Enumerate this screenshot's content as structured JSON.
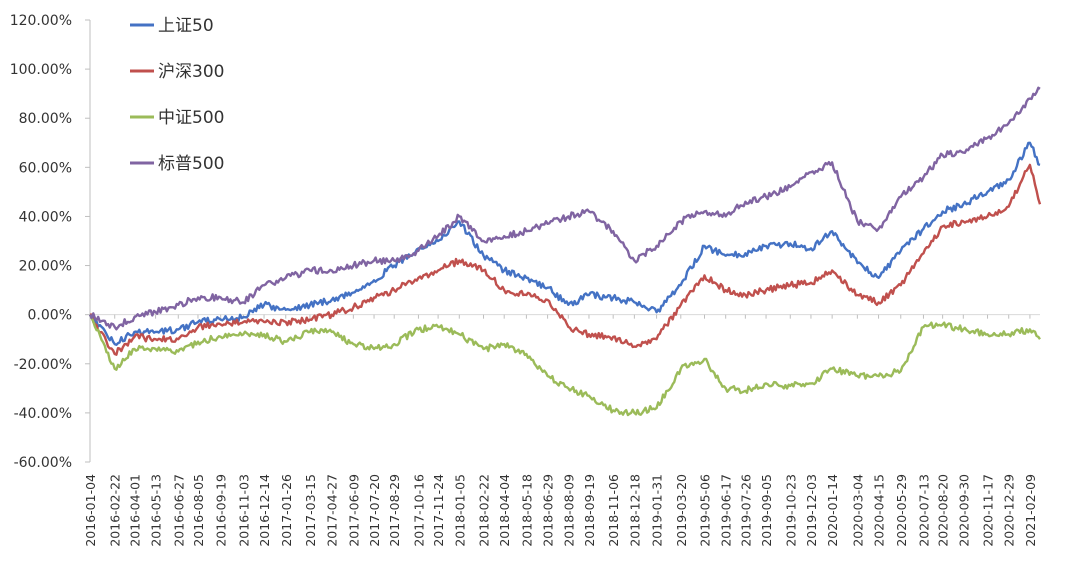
{
  "chart_data": {
    "type": "line",
    "title": "",
    "xlabel": "",
    "ylabel": "",
    "ylim": [
      -60,
      120
    ],
    "y_unit": "%",
    "grid": false,
    "legend_position": "top-left",
    "yticks": [
      "120.00%",
      "100.00%",
      "80.00%",
      "60.00%",
      "40.00%",
      "20.00%",
      "0.00%",
      "-20.00%",
      "-40.00%",
      "-60.00%"
    ],
    "xticks": [
      "2016-01-04",
      "2016-02-22",
      "2016-04-01",
      "2016-05-13",
      "2016-06-27",
      "2016-08-05",
      "2016-09-19",
      "2016-11-03",
      "2016-12-14",
      "2017-01-26",
      "2017-03-15",
      "2017-04-27",
      "2017-06-09",
      "2017-07-20",
      "2017-08-29",
      "2017-10-16",
      "2017-11-24",
      "2018-01-05",
      "2018-02-22",
      "2018-04-04",
      "2018-05-18",
      "2018-06-29",
      "2018-08-09",
      "2018-09-19",
      "2018-11-06",
      "2018-12-18",
      "2019-01-31",
      "2019-03-20",
      "2019-05-06",
      "2019-06-17",
      "2019-07-26",
      "2019-09-05",
      "2019-10-23",
      "2019-12-03",
      "2020-01-14",
      "2020-03-04",
      "2020-04-15",
      "2020-05-29",
      "2020-07-13",
      "2020-08-20",
      "2020-09-30",
      "2020-11-17",
      "2020-12-29",
      "2021-02-09"
    ],
    "x": [
      "2016-01-04",
      "2016-02-22",
      "2016-04-01",
      "2016-05-13",
      "2016-06-27",
      "2016-08-05",
      "2016-09-19",
      "2016-11-03",
      "2016-12-14",
      "2017-01-26",
      "2017-03-15",
      "2017-04-27",
      "2017-06-09",
      "2017-07-20",
      "2017-08-29",
      "2017-10-16",
      "2017-11-24",
      "2018-01-05",
      "2018-02-22",
      "2018-04-04",
      "2018-05-18",
      "2018-06-29",
      "2018-08-09",
      "2018-09-19",
      "2018-11-06",
      "2018-12-18",
      "2019-01-31",
      "2019-03-20",
      "2019-05-06",
      "2019-06-17",
      "2019-07-26",
      "2019-09-05",
      "2019-10-23",
      "2019-12-03",
      "2020-01-14",
      "2020-03-04",
      "2020-04-15",
      "2020-05-29",
      "2020-07-13",
      "2020-08-20",
      "2020-09-30",
      "2020-11-17",
      "2020-12-29",
      "2021-02-09",
      "2021-03-01"
    ],
    "series": [
      {
        "name": "上证50",
        "color": "#4472C4",
        "values": [
          0,
          -12,
          -7,
          -7,
          -6,
          -3,
          -2,
          -1,
          4,
          2,
          4,
          6,
          9,
          14,
          20,
          27,
          30,
          38,
          24,
          18,
          15,
          11,
          4,
          8,
          7,
          5,
          1,
          12,
          28,
          24,
          25,
          28,
          29,
          27,
          34,
          21,
          15,
          26,
          35,
          42,
          45,
          50,
          55,
          70,
          61
        ]
      },
      {
        "name": "沪深300",
        "color": "#C0504D",
        "values": [
          0,
          -16,
          -9,
          -10,
          -10,
          -5,
          -4,
          -3,
          -3,
          -3,
          -2,
          0,
          3,
          7,
          10,
          15,
          18,
          22,
          18,
          10,
          8,
          6,
          -5,
          -8,
          -9,
          -13,
          -10,
          4,
          16,
          10,
          8,
          10,
          12,
          13,
          18,
          8,
          5,
          12,
          25,
          36,
          38,
          40,
          44,
          61,
          45
        ]
      },
      {
        "name": "中证500",
        "color": "#9BBB59",
        "values": [
          0,
          -22,
          -14,
          -14,
          -15,
          -11,
          -9,
          -8,
          -8,
          -11,
          -7,
          -7,
          -12,
          -14,
          -12,
          -6,
          -5,
          -8,
          -14,
          -12,
          -16,
          -25,
          -30,
          -33,
          -39,
          -40,
          -38,
          -22,
          -18,
          -30,
          -31,
          -28,
          -29,
          -28,
          -22,
          -25,
          -25,
          -23,
          -5,
          -4,
          -6,
          -8,
          -8,
          -6,
          -10
        ]
      },
      {
        "name": "标普500",
        "color": "#8064A2",
        "values": [
          0,
          -5,
          -1,
          1,
          4,
          7,
          7,
          5,
          12,
          15,
          18,
          18,
          20,
          22,
          22,
          26,
          32,
          40,
          30,
          32,
          34,
          37,
          40,
          42,
          34,
          22,
          28,
          38,
          42,
          40,
          46,
          48,
          52,
          58,
          62,
          38,
          35,
          48,
          56,
          65,
          66,
          72,
          78,
          88,
          92
        ]
      }
    ]
  }
}
